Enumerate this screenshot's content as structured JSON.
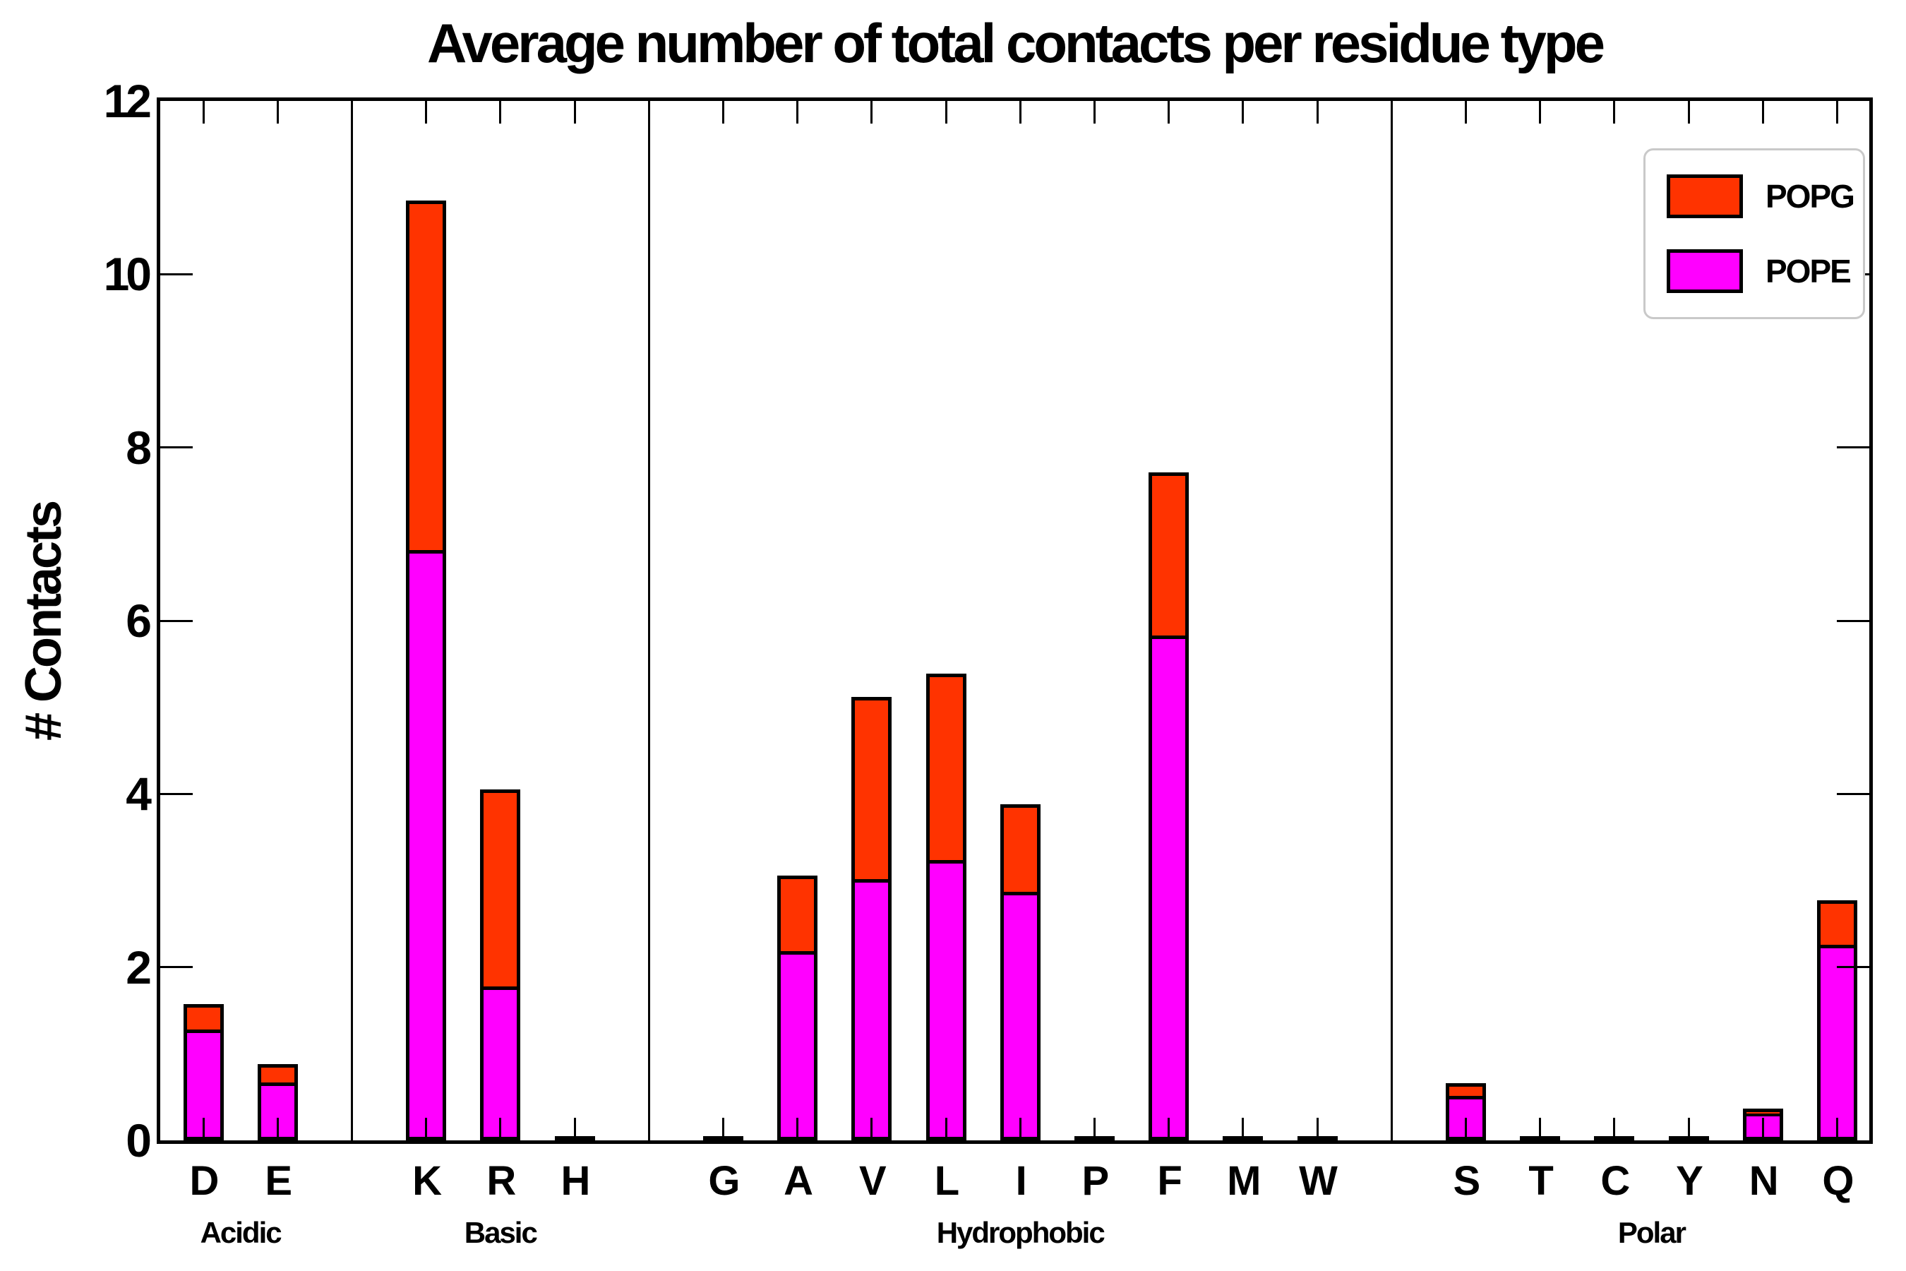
{
  "chart_data": {
    "type": "bar",
    "stacked": true,
    "title": "Average number of total contacts per residue type",
    "xlabel": "",
    "ylabel": "# Contacts",
    "ylim": [
      0,
      12
    ],
    "yticks": [
      0,
      2,
      4,
      6,
      8,
      10,
      12
    ],
    "grid": false,
    "legend_position": "top-right",
    "categories": [
      "D",
      "E",
      "K",
      "R",
      "H",
      "G",
      "A",
      "V",
      "L",
      "I",
      "P",
      "F",
      "M",
      "W",
      "S",
      "T",
      "C",
      "Y",
      "N",
      "Q"
    ],
    "groups": [
      {
        "label": "Acidic",
        "residues": [
          "D",
          "E"
        ]
      },
      {
        "label": "Basic",
        "residues": [
          "K",
          "R",
          "H"
        ]
      },
      {
        "label": "Hydrophobic",
        "residues": [
          "G",
          "A",
          "V",
          "L",
          "I",
          "P",
          "F",
          "M",
          "W"
        ]
      },
      {
        "label": "Polar",
        "residues": [
          "S",
          "T",
          "C",
          "Y",
          "N",
          "Q"
        ]
      }
    ],
    "series": [
      {
        "name": "POPG",
        "color": "#ff3300",
        "values": [
          0.31,
          0.23,
          4.05,
          2.29,
          0.01,
          0.01,
          0.89,
          2.12,
          2.17,
          1.03,
          0.01,
          1.9,
          0.01,
          0.01,
          0.16,
          0.01,
          0.01,
          0.01,
          0.07,
          0.53
        ]
      },
      {
        "name": "POPE",
        "color": "#ff00ff",
        "values": [
          1.26,
          0.65,
          6.8,
          1.76,
          0.01,
          0.01,
          2.17,
          3.0,
          3.22,
          2.85,
          0.01,
          5.81,
          0.01,
          0.01,
          0.5,
          0.01,
          0.01,
          0.01,
          0.3,
          2.24
        ]
      }
    ],
    "legend": [
      "POPG",
      "POPE"
    ],
    "colors": {
      "axis": "#000000",
      "popg": "#ff3300",
      "pope": "#ff00ff",
      "legend_border": "#c9c9c9"
    }
  }
}
